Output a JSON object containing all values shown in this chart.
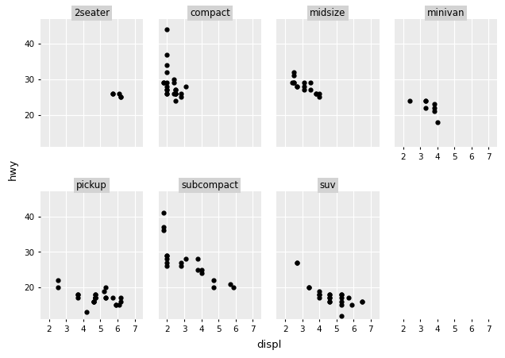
{
  "xlabel": "displ",
  "ylabel": "hwy",
  "panel_bg": "#EBEBEB",
  "fig_bg": "#FFFFFF",
  "grid_color": "#FFFFFF",
  "dot_color": "#000000",
  "dot_size": 12,
  "header_bg": "#D3D3D3",
  "xlim": [
    1.5,
    7.5
  ],
  "ylim": [
    11,
    47
  ],
  "xticks": [
    2,
    3,
    4,
    5,
    6,
    7
  ],
  "yticks": [
    20,
    30,
    40
  ],
  "classes": [
    "2seater",
    "compact",
    "midsize",
    "minivan",
    "pickup",
    "subcompact",
    "suv"
  ],
  "data": {
    "2seater": {
      "displ": [
        5.7,
        5.7,
        6.1,
        6.2,
        6.2
      ],
      "hwy": [
        26,
        26,
        26,
        25,
        25
      ]
    },
    "compact": {
      "displ": [
        1.8,
        1.8,
        2.0,
        2.0,
        2.0,
        2.0,
        2.0,
        2.0,
        2.0,
        2.0,
        2.0,
        2.0,
        2.4,
        2.4,
        2.4,
        2.5,
        2.5,
        2.5,
        2.5,
        2.5,
        2.5,
        2.8,
        2.8,
        3.1
      ],
      "hwy": [
        29,
        29,
        28,
        27,
        34,
        29,
        26,
        26,
        27,
        32,
        37,
        44,
        30,
        29,
        26,
        26,
        26,
        27,
        26,
        27,
        24,
        26,
        25,
        28
      ]
    },
    "midsize": {
      "displ": [
        2.4,
        2.5,
        2.5,
        2.5,
        2.5,
        2.7,
        2.7,
        3.1,
        3.1,
        3.1,
        3.5,
        3.5,
        3.8,
        3.8,
        4.0,
        4.0
      ],
      "hwy": [
        29,
        29,
        31,
        32,
        29,
        28,
        28,
        28,
        29,
        27,
        29,
        27,
        26,
        26,
        26,
        25
      ]
    },
    "minivan": {
      "displ": [
        2.4,
        3.3,
        3.3,
        3.3,
        3.8,
        3.8,
        3.8,
        4.0
      ],
      "hwy": [
        24,
        24,
        24,
        22,
        23,
        22,
        21,
        18
      ]
    },
    "pickup": {
      "displ": [
        2.5,
        2.5,
        3.7,
        3.7,
        3.7,
        4.7,
        4.7,
        4.7,
        4.7,
        4.7,
        4.7,
        5.2,
        5.3,
        5.3,
        5.7,
        5.9,
        6.1,
        6.2,
        6.2,
        5.9,
        5.3,
        4.6,
        4.6,
        4.6,
        4.2
      ],
      "hwy": [
        20,
        22,
        18,
        18,
        17,
        18,
        17,
        17,
        18,
        17,
        17,
        19,
        17,
        17,
        17,
        15,
        15,
        16,
        17,
        15,
        20,
        16,
        16,
        16,
        13
      ]
    },
    "subcompact": {
      "displ": [
        1.8,
        1.8,
        1.8,
        2.0,
        2.0,
        2.0,
        2.0,
        2.0,
        2.8,
        2.8,
        3.1,
        3.8,
        3.8,
        4.0,
        4.0,
        4.7,
        4.7,
        5.7,
        5.9
      ],
      "hwy": [
        36,
        37,
        41,
        29,
        26,
        28,
        27,
        29,
        26,
        27,
        28,
        28,
        25,
        25,
        24,
        20,
        22,
        21,
        20
      ]
    },
    "suv": {
      "displ": [
        2.7,
        2.7,
        3.4,
        3.4,
        4.0,
        4.0,
        4.0,
        4.0,
        4.6,
        4.6,
        4.6,
        4.6,
        4.6,
        4.6,
        5.3,
        5.3,
        5.3,
        5.3,
        5.3,
        5.3,
        5.7,
        5.9,
        6.5,
        6.5
      ],
      "hwy": [
        27,
        27,
        20,
        20,
        18,
        19,
        18,
        17,
        16,
        16,
        17,
        17,
        18,
        18,
        16,
        17,
        18,
        18,
        15,
        12,
        17,
        15,
        16,
        16
      ]
    }
  }
}
